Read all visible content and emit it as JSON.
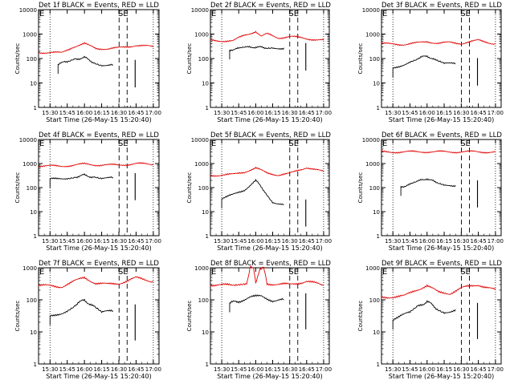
{
  "figure": {
    "panel_count": 9,
    "layout": "3x3 grid",
    "background": "#ffffff"
  },
  "colors": {
    "events": "#000000",
    "lld": "#e00000",
    "axes": "#000000"
  },
  "chart_data": [
    {
      "type": "line",
      "title": "Det 1f BLACK = Events, RED = LLD",
      "xlabel": "Start Time (26-May-15 15:20:40)",
      "ylabel": "Counts/sec",
      "xticks": [
        "15:30",
        "15:45",
        "16:00",
        "16:15",
        "16:30",
        "16:45",
        "17:00"
      ],
      "yticks": [
        "1",
        "10",
        "100",
        "1000",
        "10000"
      ],
      "yscale": "log",
      "ylim": [
        1,
        10000
      ],
      "xlim": [
        "15:20",
        "17:05"
      ],
      "markers": {
        "E": "15:22",
        "SE": "16:40"
      },
      "series": [
        {
          "name": "Events",
          "color": "#000000",
          "x": [
            "15:37",
            "15:45",
            "15:52",
            "16:00",
            "16:08",
            "16:15",
            "16:25"
          ],
          "y": [
            60,
            75,
            95,
            110,
            70,
            55,
            55
          ]
        },
        {
          "name": "LLD",
          "color": "#e00000",
          "x": [
            "15:20",
            "15:40",
            "15:50",
            "16:00",
            "16:10",
            "16:20",
            "16:30",
            "16:45",
            "17:00"
          ],
          "y": [
            180,
            170,
            300,
            400,
            260,
            250,
            270,
            350,
            300
          ]
        }
      ]
    },
    {
      "type": "line",
      "title": "Det 2f BLACK = Events, RED = LLD",
      "xlabel": "Start Time (26-May-15 15:20:40)",
      "ylabel": "Counts/sec",
      "xticks": [
        "15:30",
        "15:45",
        "16:00",
        "16:15",
        "16:30",
        "16:45",
        "17:00"
      ],
      "yticks": [
        "1",
        "10",
        "100",
        "1000",
        "10000"
      ],
      "yscale": "log",
      "ylim": [
        1,
        10000
      ],
      "xlim": [
        "15:20",
        "17:05"
      ],
      "markers": {
        "E": "15:22",
        "SE": "16:40"
      },
      "series": [
        {
          "name": "Events",
          "color": "#000000",
          "x": [
            "15:37",
            "15:45",
            "15:52",
            "16:00",
            "16:08",
            "16:15",
            "16:25"
          ],
          "y": [
            230,
            250,
            280,
            300,
            270,
            260,
            270
          ]
        },
        {
          "name": "LLD",
          "color": "#e00000",
          "x": [
            "15:20",
            "15:40",
            "15:50",
            "16:00",
            "16:05",
            "16:10",
            "16:20",
            "16:30",
            "16:45",
            "17:00"
          ],
          "y": [
            550,
            520,
            900,
            1300,
            800,
            1000,
            700,
            800,
            650,
            560
          ]
        }
      ]
    },
    {
      "type": "line",
      "title": "Det 3f BLACK = Events, RED = LLD",
      "xlabel": "Start Time (26-May-15 15:20:40)",
      "ylabel": "Counts/sec",
      "xticks": [
        "15:30",
        "15:45",
        "16:00",
        "16:15",
        "16:30",
        "16:45",
        "17:00"
      ],
      "yticks": [
        "1",
        "10",
        "100",
        "1000",
        "10000"
      ],
      "yscale": "log",
      "ylim": [
        1,
        10000
      ],
      "xlim": [
        "15:20",
        "17:05"
      ],
      "markers": {
        "E": "15:22",
        "SE": "16:40"
      },
      "series": [
        {
          "name": "Events",
          "color": "#000000",
          "x": [
            "15:30",
            "15:45",
            "15:52",
            "16:00",
            "16:08",
            "16:15",
            "16:25"
          ],
          "y": [
            40,
            70,
            100,
            130,
            80,
            60,
            65
          ]
        },
        {
          "name": "LLD",
          "color": "#e00000",
          "x": [
            "15:20",
            "15:40",
            "15:50",
            "16:00",
            "16:10",
            "16:20",
            "16:30",
            "16:45",
            "17:00"
          ],
          "y": [
            400,
            380,
            420,
            500,
            420,
            450,
            420,
            550,
            400
          ]
        }
      ]
    },
    {
      "type": "line",
      "title": "Det 4f BLACK = Events, RED = LLD",
      "xlabel": "Start Time (26-May-15 15:20:40)",
      "ylabel": "Counts/sec",
      "xticks": [
        "15:30",
        "15:45",
        "16:00",
        "16:15",
        "16:30",
        "16:45",
        "17:00"
      ],
      "yticks": [
        "1",
        "10",
        "100",
        "1000",
        "10000"
      ],
      "yscale": "log",
      "ylim": [
        1,
        10000
      ],
      "xlim": [
        "15:20",
        "17:05"
      ],
      "markers": {
        "E": "15:22",
        "SE": "16:40"
      },
      "series": [
        {
          "name": "Events",
          "color": "#000000",
          "x": [
            "15:30",
            "15:45",
            "15:52",
            "16:00",
            "16:08",
            "16:15",
            "16:25"
          ],
          "y": [
            220,
            250,
            280,
            330,
            270,
            250,
            250
          ]
        },
        {
          "name": "LLD",
          "color": "#e00000",
          "x": [
            "15:20",
            "15:40",
            "15:50",
            "16:00",
            "16:10",
            "16:20",
            "16:30",
            "16:45",
            "17:00"
          ],
          "y": [
            800,
            780,
            850,
            950,
            880,
            870,
            860,
            1000,
            900
          ]
        }
      ]
    },
    {
      "type": "line",
      "title": "Det 5f BLACK = Events, RED = LLD",
      "xlabel": "Start Time (26-May-15 15:20:40)",
      "ylabel": "Counts/sec",
      "xticks": [
        "15:30",
        "15:45",
        "16:00",
        "16:15",
        "16:30",
        "16:45",
        "17:00"
      ],
      "yticks": [
        "1",
        "10",
        "100",
        "1000",
        "10000"
      ],
      "yscale": "log",
      "ylim": [
        1,
        10000
      ],
      "xlim": [
        "15:20",
        "17:05"
      ],
      "markers": {
        "E": "15:22",
        "SE": "16:40"
      },
      "series": [
        {
          "name": "Events",
          "color": "#000000",
          "x": [
            "15:30",
            "15:40",
            "15:50",
            "16:00",
            "16:08",
            "16:15",
            "16:25"
          ],
          "y": [
            35,
            50,
            80,
            200,
            70,
            25,
            20
          ]
        },
        {
          "name": "LLD",
          "color": "#e00000",
          "x": [
            "15:20",
            "15:40",
            "15:50",
            "16:00",
            "16:10",
            "16:20",
            "16:30",
            "16:45",
            "17:00"
          ],
          "y": [
            320,
            350,
            450,
            650,
            400,
            340,
            380,
            700,
            450
          ]
        }
      ]
    },
    {
      "type": "line",
      "title": "Det 6f BLACK = Events, RED = LLD",
      "xlabel": "Start Time (26-May-15 15:20:40)",
      "ylabel": "Counts/sec",
      "xticks": [
        "15:30",
        "15:45",
        "16:00",
        "16:15",
        "16:30",
        "16:45",
        "17:00"
      ],
      "yticks": [
        "1",
        "10",
        "100",
        "1000",
        "10000"
      ],
      "yscale": "log",
      "ylim": [
        1,
        10000
      ],
      "xlim": [
        "15:20",
        "17:05"
      ],
      "markers": {
        "E": "15:22",
        "SE": "16:40"
      },
      "series": [
        {
          "name": "Events",
          "color": "#000000",
          "x": [
            "15:37",
            "15:45",
            "15:52",
            "16:00",
            "16:08",
            "16:15",
            "16:25"
          ],
          "y": [
            110,
            130,
            180,
            240,
            160,
            120,
            125
          ]
        },
        {
          "name": "LLD",
          "color": "#e00000",
          "x": [
            "15:20",
            "15:40",
            "16:00",
            "16:20",
            "16:40",
            "17:00"
          ],
          "y": [
            3000,
            3050,
            3100,
            3050,
            3100,
            3000
          ]
        }
      ]
    },
    {
      "type": "line",
      "title": "Det 7f BLACK = Events, RED = LLD",
      "xlabel": "Start Time (26-May-15 15:20:40)",
      "ylabel": "Counts/sec",
      "xticks": [
        "15:30",
        "15:45",
        "16:00",
        "16:15",
        "16:30",
        "16:45",
        "17:00"
      ],
      "yticks": [
        "1",
        "10",
        "100",
        "1000"
      ],
      "yscale": "log",
      "ylim": [
        1,
        1000
      ],
      "xlim": [
        "15:20",
        "17:05"
      ],
      "markers": {
        "E": "15:22",
        "SE": "16:40"
      },
      "series": [
        {
          "name": "Events",
          "color": "#000000",
          "x": [
            "15:30",
            "15:45",
            "15:52",
            "16:00",
            "16:08",
            "16:15",
            "16:25"
          ],
          "y": [
            30,
            45,
            70,
            100,
            60,
            40,
            45
          ]
        },
        {
          "name": "LLD",
          "color": "#e00000",
          "x": [
            "15:20",
            "15:40",
            "15:50",
            "16:00",
            "16:10",
            "16:20",
            "16:30",
            "16:45",
            "17:00"
          ],
          "y": [
            280,
            260,
            360,
            500,
            330,
            300,
            330,
            480,
            380
          ]
        }
      ]
    },
    {
      "type": "line",
      "title": "Det 8f BLACK = Events, RED = LLD",
      "xlabel": "Start Time (26-May-15 15:20:40)",
      "ylabel": "Counts/sec",
      "xticks": [
        "15:30",
        "15:45",
        "16:00",
        "16:15",
        "16:30",
        "16:45",
        "17:00"
      ],
      "yticks": [
        "1",
        "10",
        "100",
        "1000"
      ],
      "yscale": "log",
      "ylim": [
        1,
        1000
      ],
      "xlim": [
        "15:20",
        "17:05"
      ],
      "markers": {
        "E": "15:22",
        "SE": "16:40"
      },
      "series": [
        {
          "name": "Events",
          "color": "#000000",
          "x": [
            "15:37",
            "15:45",
            "15:55",
            "16:05",
            "16:15",
            "16:25"
          ],
          "y": [
            80,
            90,
            120,
            130,
            95,
            100
          ]
        },
        {
          "name": "LLD",
          "color": "#e00000",
          "x": [
            "15:20",
            "15:40",
            "15:52",
            "15:55",
            "15:58",
            "16:00",
            "16:04",
            "16:07",
            "16:10",
            "16:20",
            "16:30",
            "16:45",
            "17:00"
          ],
          "y": [
            300,
            280,
            320,
            1000,
            1000,
            300,
            1000,
            1000,
            330,
            300,
            300,
            380,
            280
          ]
        }
      ]
    },
    {
      "type": "line",
      "title": "Det 9f BLACK = Events, RED = LLD",
      "xlabel": "Start Time (26-May-15 15:20:40)",
      "ylabel": "Counts/sec",
      "xticks": [
        "15:30",
        "15:45",
        "16:00",
        "16:15",
        "16:30",
        "16:45",
        "17:00"
      ],
      "yticks": [
        "1",
        "10",
        "100",
        "1000"
      ],
      "yscale": "log",
      "ylim": [
        1,
        1000
      ],
      "xlim": [
        "15:20",
        "17:05"
      ],
      "markers": {
        "E": "15:22",
        "SE": "16:40"
      },
      "series": [
        {
          "name": "Events",
          "color": "#000000",
          "x": [
            "15:30",
            "15:45",
            "15:52",
            "16:00",
            "16:08",
            "16:15",
            "16:25"
          ],
          "y": [
            25,
            40,
            60,
            90,
            55,
            40,
            50
          ]
        },
        {
          "name": "LLD",
          "color": "#e00000",
          "x": [
            "15:20",
            "15:40",
            "15:50",
            "16:00",
            "16:10",
            "16:20",
            "16:30",
            "16:45",
            "17:00"
          ],
          "y": [
            120,
            130,
            200,
            280,
            170,
            160,
            230,
            300,
            200
          ]
        }
      ]
    }
  ]
}
